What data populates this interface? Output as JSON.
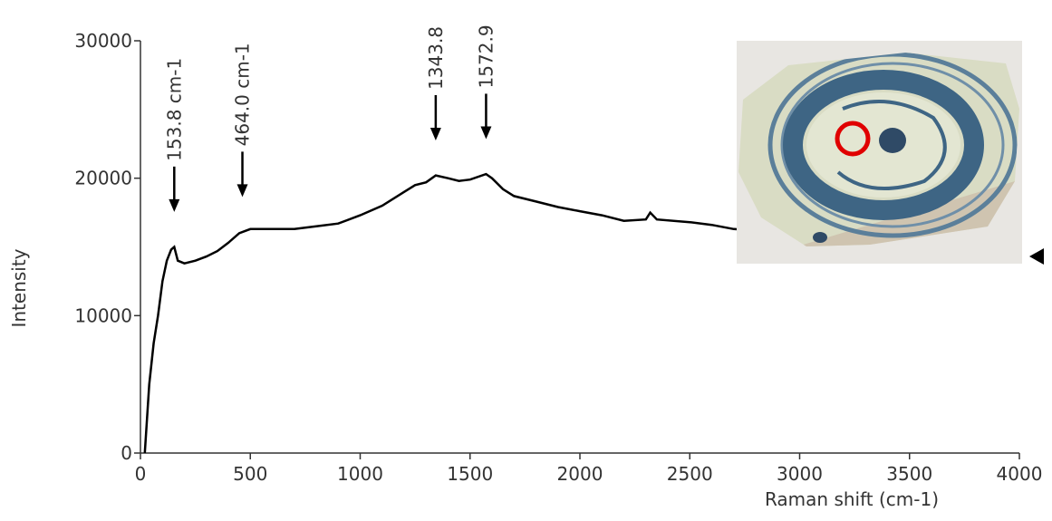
{
  "chart_data": {
    "type": "line",
    "xlabel": "Raman shift (cm-1)",
    "ylabel": "Intensity",
    "x": [
      20,
      40,
      60,
      80,
      100,
      120,
      140,
      153.8,
      170,
      200,
      250,
      300,
      350,
      400,
      450,
      500,
      600,
      700,
      800,
      900,
      1000,
      1100,
      1200,
      1250,
      1300,
      1343.8,
      1400,
      1450,
      1500,
      1572.9,
      1600,
      1650,
      1700,
      1800,
      1900,
      2000,
      2100,
      2200,
      2300,
      2320,
      2350,
      2500,
      2600,
      2700,
      2800
    ],
    "values": [
      0,
      5000,
      8000,
      10000,
      12500,
      14000,
      14800,
      15000,
      14000,
      13800,
      14000,
      14300,
      14700,
      15300,
      16000,
      16300,
      16300,
      16300,
      16500,
      16700,
      17300,
      18000,
      19000,
      19500,
      19700,
      20200,
      20000,
      19800,
      19900,
      20300,
      20000,
      19200,
      18700,
      18300,
      17900,
      17600,
      17300,
      16900,
      17000,
      17500,
      17000,
      16800,
      16600,
      16300,
      16200
    ],
    "color": "#000000",
    "xlim": [
      0,
      4000
    ],
    "xticks": [
      0,
      500,
      1000,
      1500,
      2000,
      2500,
      3000,
      3500,
      4000
    ],
    "ylim": [
      0,
      30000
    ],
    "yticks": [
      0,
      10000,
      20000,
      30000
    ],
    "annotations": [
      {
        "x": 153.8,
        "text": "153.8 cm-1"
      },
      {
        "x": 464.0,
        "text": "464.0 cm-1"
      },
      {
        "x": 1343.8,
        "text": "1343.8"
      },
      {
        "x": 1572.9,
        "text": "1572.9"
      }
    ]
  }
}
